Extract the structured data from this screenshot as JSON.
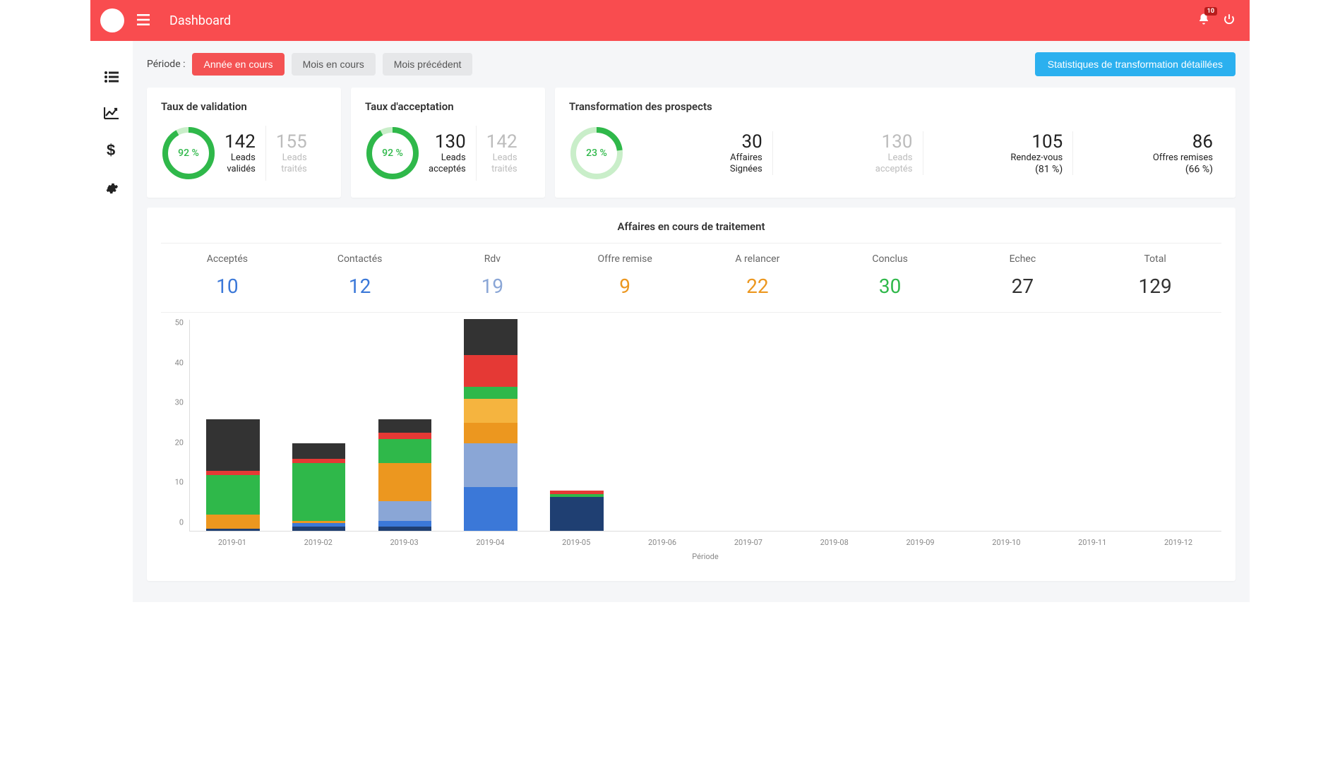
{
  "colors": {
    "topbar": "#f94c4f",
    "pill_active": "#f45253",
    "btn_blue": "#2bb0ef",
    "donut_green": "#2fb84a",
    "donut_green_light": "#c9eec9",
    "muted": "#bcbcbc",
    "background": "#f5f6f8"
  },
  "header": {
    "title": "Dashboard",
    "notification_count": "10"
  },
  "period": {
    "label": "Période :",
    "options": [
      "Année en cours",
      "Mois en cours",
      "Mois précédent"
    ],
    "active_index": 0
  },
  "stats_link": "Statistiques de transformation détaillées",
  "card_validation": {
    "title": "Taux de validation",
    "pct_text": "92 %",
    "pct_value": 92,
    "donut_color": "#2fb84a",
    "donut_bg": "#c9eec9",
    "main": {
      "value": "142",
      "label1": "Leads",
      "label2": "validés"
    },
    "muted": {
      "value": "155",
      "label1": "Leads",
      "label2": "traités"
    }
  },
  "card_acceptation": {
    "title": "Taux d'acceptation",
    "pct_text": "92 %",
    "pct_value": 92,
    "donut_color": "#2fb84a",
    "donut_bg": "#c9eec9",
    "main": {
      "value": "130",
      "label1": "Leads",
      "label2": "acceptés"
    },
    "muted": {
      "value": "142",
      "label1": "Leads",
      "label2": "traités"
    }
  },
  "card_transformation": {
    "title": "Transformation des prospects",
    "pct_text": "23 %",
    "pct_value": 23,
    "donut_color": "#2fb84a",
    "donut_bg": "#c9eec9",
    "stats": [
      {
        "value": "30",
        "label1": "Affaires",
        "label2": "Signées",
        "muted": false
      },
      {
        "value": "130",
        "label1": "Leads",
        "label2": "acceptés",
        "muted": true
      },
      {
        "value": "105",
        "label1": "Rendez-vous",
        "sub": "(81 %)",
        "muted": false
      },
      {
        "value": "86",
        "label1": "Offres remises",
        "sub": "(66 %)",
        "muted": false
      }
    ]
  },
  "pipeline": {
    "title": "Affaires en cours de traitement",
    "columns": [
      {
        "label": "Acceptés",
        "value": "10",
        "color": "#3b78d8"
      },
      {
        "label": "Contactés",
        "value": "12",
        "color": "#3b78d8"
      },
      {
        "label": "Rdv",
        "value": "19",
        "color": "#8aa6d6"
      },
      {
        "label": "Offre remise",
        "value": "9",
        "color": "#ec971f"
      },
      {
        "label": "A relancer",
        "value": "22",
        "color": "#ec971f"
      },
      {
        "label": "Conclus",
        "value": "30",
        "color": "#2fb84a"
      },
      {
        "label": "Echec",
        "value": "27",
        "color": "#333333"
      },
      {
        "label": "Total",
        "value": "129",
        "color": "#333333"
      }
    ]
  },
  "chart": {
    "x_title": "Période",
    "x_labels": [
      "2019-01",
      "2019-02",
      "2019-03",
      "2019-04",
      "2019-05",
      "2019-06",
      "2019-07",
      "2019-08",
      "2019-09",
      "2019-10",
      "2019-11",
      "2019-12"
    ],
    "y_max": 53,
    "y_ticks": [
      0,
      10,
      20,
      30,
      40,
      50
    ],
    "series_colors": {
      "acceptes": "#1f3f72",
      "contactes": "#3b78d8",
      "rdv": "#8aa6d6",
      "offre": "#ec971f",
      "relancer": "#f5b43f",
      "conclus": "#2fb84a",
      "echec_red": "#e53935",
      "echec_dark": "#333333"
    },
    "bars": [
      {
        "segments": [
          {
            "k": "acceptes",
            "v": 0.5
          },
          {
            "k": "contactes",
            "v": 0
          },
          {
            "k": "rdv",
            "v": 0
          },
          {
            "k": "offre",
            "v": 3.5
          },
          {
            "k": "relancer",
            "v": 0
          },
          {
            "k": "conclus",
            "v": 10
          },
          {
            "k": "echec_red",
            "v": 1
          },
          {
            "k": "echec_dark",
            "v": 13
          }
        ]
      },
      {
        "segments": [
          {
            "k": "acceptes",
            "v": 1
          },
          {
            "k": "contactes",
            "v": 1
          },
          {
            "k": "rdv",
            "v": 0
          },
          {
            "k": "offre",
            "v": 0.5
          },
          {
            "k": "relancer",
            "v": 0
          },
          {
            "k": "conclus",
            "v": 14.5
          },
          {
            "k": "echec_red",
            "v": 1
          },
          {
            "k": "echec_dark",
            "v": 4
          }
        ]
      },
      {
        "segments": [
          {
            "k": "acceptes",
            "v": 1
          },
          {
            "k": "contactes",
            "v": 1.5
          },
          {
            "k": "rdv",
            "v": 5
          },
          {
            "k": "offre",
            "v": 9.5
          },
          {
            "k": "relancer",
            "v": 0
          },
          {
            "k": "conclus",
            "v": 6
          },
          {
            "k": "echec_red",
            "v": 1.5
          },
          {
            "k": "echec_dark",
            "v": 3.5
          }
        ]
      },
      {
        "segments": [
          {
            "k": "acceptes",
            "v": 0
          },
          {
            "k": "contactes",
            "v": 11
          },
          {
            "k": "rdv",
            "v": 11
          },
          {
            "k": "offre",
            "v": 5
          },
          {
            "k": "relancer",
            "v": 6
          },
          {
            "k": "conclus",
            "v": 3
          },
          {
            "k": "echec_red",
            "v": 8
          },
          {
            "k": "echec_dark",
            "v": 9
          }
        ]
      },
      {
        "segments": [
          {
            "k": "acceptes",
            "v": 8.5
          },
          {
            "k": "contactes",
            "v": 0
          },
          {
            "k": "rdv",
            "v": 0
          },
          {
            "k": "offre",
            "v": 0
          },
          {
            "k": "relancer",
            "v": 0
          },
          {
            "k": "conclus",
            "v": 0.7
          },
          {
            "k": "echec_red",
            "v": 0.8
          },
          {
            "k": "echec_dark",
            "v": 0
          }
        ]
      },
      {
        "segments": []
      },
      {
        "segments": []
      },
      {
        "segments": []
      },
      {
        "segments": []
      },
      {
        "segments": []
      },
      {
        "segments": []
      },
      {
        "segments": []
      }
    ]
  }
}
